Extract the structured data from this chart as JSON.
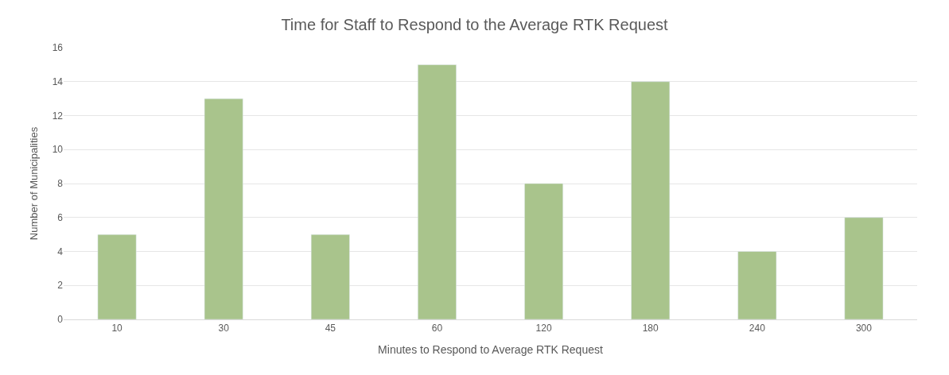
{
  "chart_data": {
    "type": "bar",
    "title": "Time for Staff to Respond to the Average RTK Request",
    "xlabel": "Minutes to Respond to Average RTK Request",
    "ylabel": "Number of Municipalities",
    "categories": [
      "10",
      "30",
      "45",
      "60",
      "120",
      "180",
      "240",
      "300"
    ],
    "values": [
      5,
      13,
      5,
      15,
      8,
      14,
      4,
      6
    ],
    "color": "#a9c48c",
    "ylim": [
      0,
      16
    ],
    "yticks": [
      0,
      2,
      4,
      6,
      8,
      10,
      12,
      14,
      16
    ],
    "grid": "y"
  }
}
